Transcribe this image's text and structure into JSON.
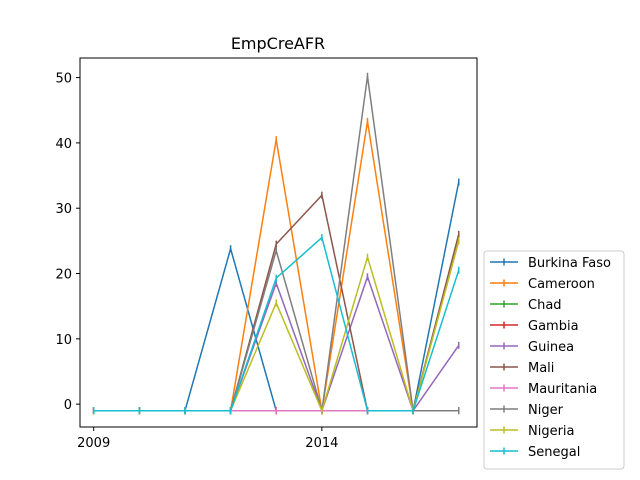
{
  "chart_data": {
    "type": "line",
    "title": "EmpCreAFR",
    "xlabel": "",
    "ylabel": "",
    "x": [
      2009,
      2010,
      2011,
      2012,
      2013,
      2014,
      2015,
      2016,
      2017
    ],
    "xticks": [
      2009,
      2014
    ],
    "xtick_labels": [
      "2009",
      "2014"
    ],
    "xlim": [
      2008.7,
      2017.4
    ],
    "ylim": [
      -3.5,
      53
    ],
    "yticks": [
      0,
      10,
      20,
      30,
      40,
      50
    ],
    "ytick_labels": [
      "0",
      "10",
      "20",
      "30",
      "40",
      "50"
    ],
    "grid": false,
    "legend_position": "lower-right-outside",
    "series": [
      {
        "name": "Burkina Faso",
        "color": "#1f77b4",
        "values": [
          -1,
          -1,
          -1,
          23.8,
          -1,
          -1,
          -1,
          -1,
          34
        ]
      },
      {
        "name": "Cameroon",
        "color": "#ff7f0e",
        "values": [
          -1,
          -1,
          -1,
          -1,
          40.5,
          -1,
          43.3,
          -1,
          25
        ]
      },
      {
        "name": "Chad",
        "color": "#2ca02c",
        "values": [
          -1,
          -1,
          -1,
          -1,
          -1,
          -1,
          -1,
          -1,
          -1
        ]
      },
      {
        "name": "Gambia",
        "color": "#d62728",
        "values": [
          -1,
          -1,
          -1,
          -1,
          -1,
          -1,
          -1,
          -1,
          -1
        ]
      },
      {
        "name": "Guinea",
        "color": "#9467bd",
        "values": [
          -1,
          -1,
          -1,
          -1,
          18.5,
          -1,
          19.5,
          -1,
          9
        ]
      },
      {
        "name": "Mali",
        "color": "#8c564b",
        "values": [
          -1,
          -1,
          -1,
          -1,
          24.5,
          32,
          -1,
          -1,
          26
        ]
      },
      {
        "name": "Mauritania",
        "color": "#e377c2",
        "values": [
          -1,
          -1,
          -1,
          -1,
          -1,
          -1,
          -1,
          -1,
          -1
        ]
      },
      {
        "name": "Niger",
        "color": "#7f7f7f",
        "values": [
          -1,
          -1,
          -1,
          -1,
          23.5,
          -1,
          50.2,
          -1,
          -1
        ]
      },
      {
        "name": "Nigeria",
        "color": "#bcbd22",
        "values": [
          -1,
          -1,
          -1,
          -1,
          15.5,
          -1,
          22.5,
          -1,
          25
        ]
      },
      {
        "name": "Senegal",
        "color": "#17becf",
        "values": [
          -1,
          -1,
          -1,
          -1,
          19.3,
          25.5,
          -1,
          -1,
          20.5
        ]
      }
    ]
  }
}
